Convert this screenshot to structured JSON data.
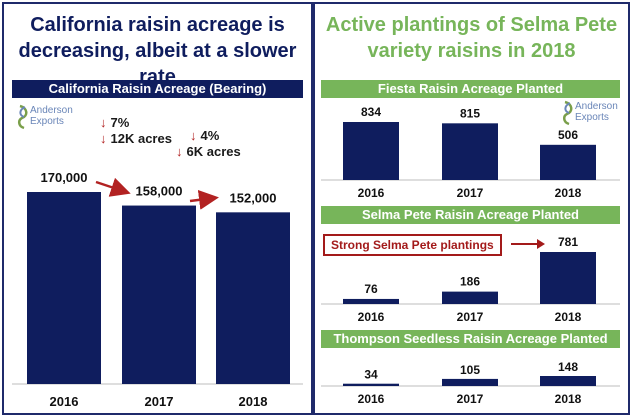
{
  "left": {
    "heading": [
      "California raisin acreage is",
      "decreasing, albeit at a slower rate"
    ],
    "heading_color": "#0f1d5e",
    "logo": {
      "line1": "Anderson",
      "line2": "Exports"
    },
    "notes": [
      {
        "arrow": "↓",
        "line1": "7%",
        "line2": "12K acres"
      },
      {
        "arrow": "↓",
        "line1": "4%",
        "line2": "6K acres"
      }
    ]
  },
  "right": {
    "heading": [
      "Active plantings of Selma Pete",
      "variety raisins in 2018"
    ],
    "heading_color": "#77b55a",
    "logo": {
      "line1": "Anderson",
      "line2": "Exports"
    },
    "callout": "Strong Selma Pete plantings"
  },
  "colors": {
    "bar": "#0f1d5e",
    "arrow": "#b22222"
  },
  "chart_data": [
    {
      "type": "bar",
      "title": "California Raisin Acreage (Bearing)",
      "categories": [
        "2016",
        "2017",
        "2018"
      ],
      "values": [
        170000,
        158000,
        152000
      ],
      "labels": [
        "170,000",
        "158,000",
        "152,000"
      ]
    },
    {
      "type": "bar",
      "title": "Fiesta Raisin Acreage Planted",
      "categories": [
        "2016",
        "2017",
        "2018"
      ],
      "values": [
        834,
        815,
        506
      ],
      "labels": [
        "834",
        "815",
        "506"
      ]
    },
    {
      "type": "bar",
      "title": "Selma Pete Raisin Acreage Planted",
      "categories": [
        "2016",
        "2017",
        "2018"
      ],
      "values": [
        76,
        186,
        781
      ],
      "labels": [
        "76",
        "186",
        "781"
      ]
    },
    {
      "type": "bar",
      "title": "Thompson Seedless Raisin Acreage Planted",
      "categories": [
        "2016",
        "2017",
        "2018"
      ],
      "values": [
        34,
        105,
        148
      ],
      "labels": [
        "34",
        "105",
        "148"
      ]
    }
  ]
}
